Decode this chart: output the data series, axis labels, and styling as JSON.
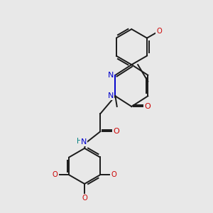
{
  "background_color": "#e8e8e8",
  "bond_color": "#1a1a1a",
  "nitrogen_color": "#0000cc",
  "oxygen_color": "#cc0000",
  "teal_color": "#008080",
  "line_width": 1.4,
  "figsize": [
    3.0,
    3.0
  ],
  "dpi": 100,
  "xlim": [
    0,
    10
  ],
  "ylim": [
    0,
    10
  ]
}
